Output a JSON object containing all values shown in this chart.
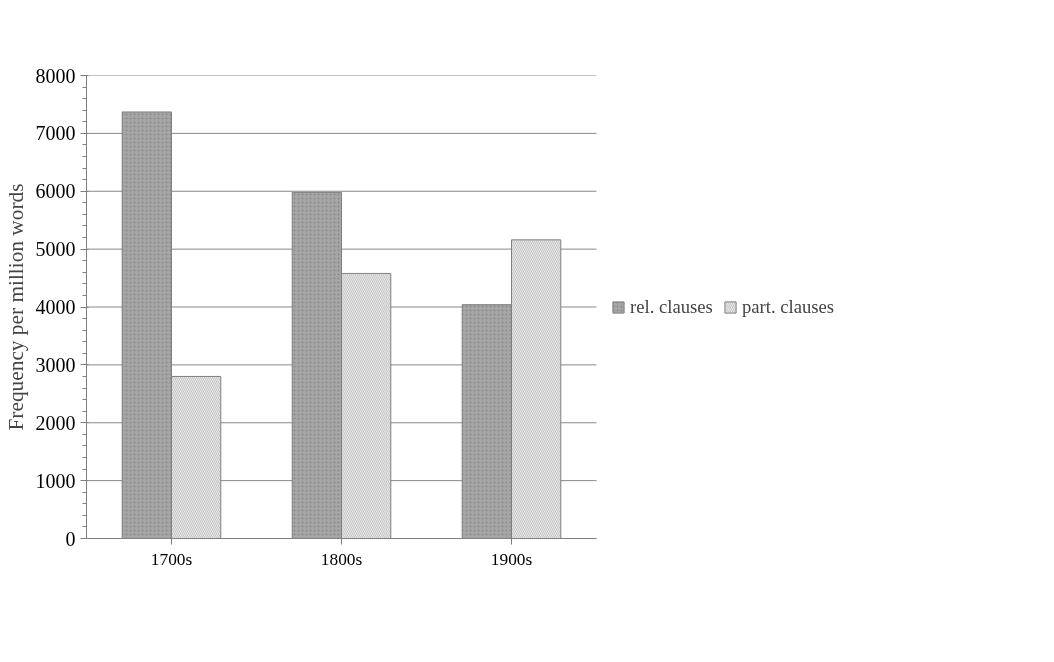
{
  "chart_data": {
    "type": "bar",
    "ylabel": "Frequency per million words",
    "categories": [
      "1700s",
      "1800s",
      "1900s"
    ],
    "series": [
      {
        "name": "rel. clauses",
        "color": "#a6a6a6",
        "values": [
          7370,
          5980,
          4040
        ]
      },
      {
        "name": "part. clauses",
        "color": "#e6e6e6",
        "values": [
          2800,
          4580,
          5160
        ]
      }
    ],
    "ylim": [
      0,
      8000
    ],
    "yticks": [
      0,
      1000,
      2000,
      3000,
      4000,
      5000,
      6000,
      7000,
      8000
    ],
    "grid": "y",
    "legend": "right"
  }
}
